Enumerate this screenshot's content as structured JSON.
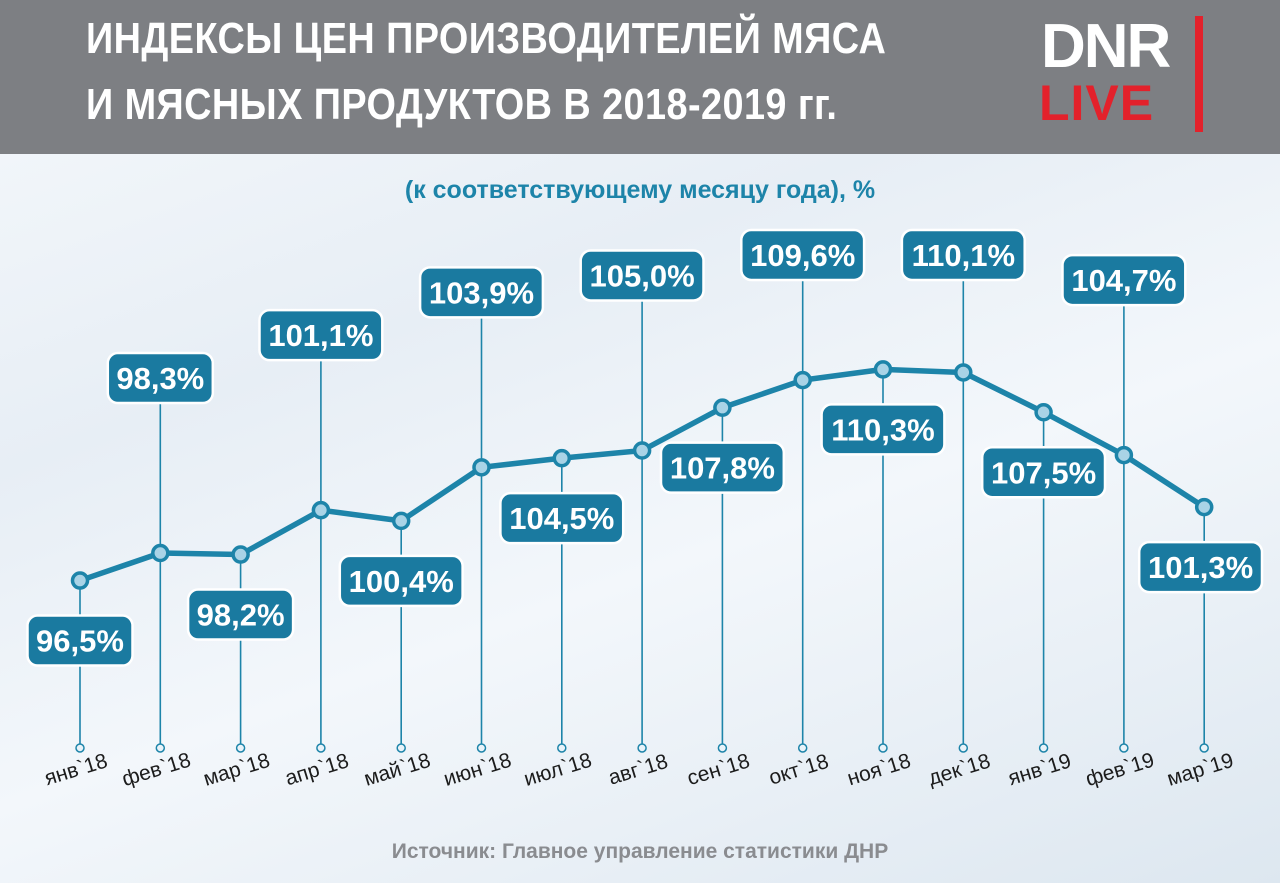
{
  "header": {
    "title_line1": "ИНДЕКСЫ ЦЕН ПРОИЗВОДИТЕЛЕЙ МЯСА",
    "title_line2": "И МЯСНЫХ ПРОДУКТОВ В 2018-2019 гг.",
    "logo_top": "DNR",
    "logo_bottom": "LIVE"
  },
  "subtitle": "(к соответствующему месяцу года), %",
  "source": "Источник: Главное управление статистики ДНР",
  "colors": {
    "line": "#1d84a9",
    "label_bg": "#1a7aa0",
    "marker_fill": "#a9d3e6",
    "header_bg": "#7d7f83",
    "logo_red": "#e3212b"
  },
  "chart_data": {
    "type": "line",
    "categories": [
      "янв`18",
      "фев`18",
      "мар`18",
      "апр`18",
      "май`18",
      "июн`18",
      "июл`18",
      "авг`18",
      "сен`18",
      "окт`18",
      "ноя`18",
      "дек`18",
      "янв`19",
      "фев`19",
      "мар`19"
    ],
    "values": [
      96.5,
      98.3,
      98.2,
      101.1,
      100.4,
      103.9,
      104.5,
      105.0,
      107.8,
      109.6,
      110.3,
      110.1,
      107.5,
      104.7,
      101.3
    ],
    "data_labels": [
      "96,5%",
      "98,3%",
      "98,2%",
      "101,1%",
      "100,4%",
      "103,9%",
      "104,5%",
      "105,0%",
      "107,8%",
      "109,6%",
      "110,3%",
      "110,1%",
      "107,5%",
      "104,7%",
      "101,3%"
    ],
    "label_positions": [
      "below",
      "above",
      "below",
      "above",
      "below",
      "above",
      "below",
      "above",
      "below",
      "above",
      "below",
      "above",
      "below",
      "above",
      "below"
    ],
    "title": "ИНДЕКСЫ ЦЕН ПРОИЗВОДИТЕЛЕЙ МЯСА И МЯСНЫХ ПРОДУКТОВ В 2018-2019 гг.",
    "subtitle": "(к соответствующему месяцу года), %",
    "xlabel": "",
    "ylabel": "",
    "grid": false,
    "legend": "none"
  }
}
